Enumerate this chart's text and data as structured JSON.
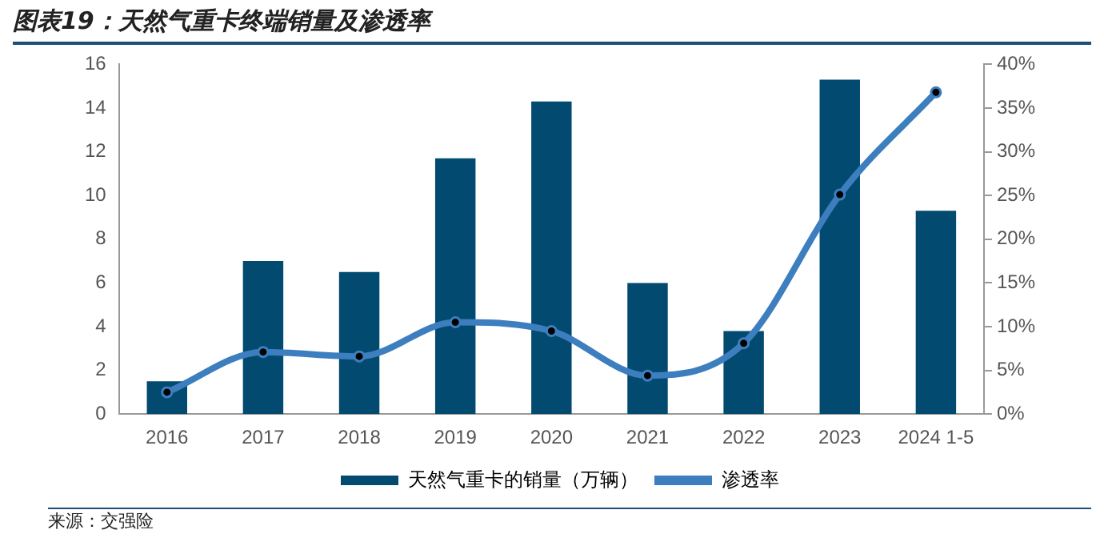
{
  "chart_data": {
    "type": "bar",
    "title": "图表19：天然气重卡终端销量及渗透率",
    "categories": [
      "2016",
      "2017",
      "2018",
      "2019",
      "2020",
      "2021",
      "2022",
      "2023",
      "2024 1-5"
    ],
    "series": [
      {
        "name": "天然气重卡的销量（万辆）",
        "color": "#024a70",
        "values": [
          1.5,
          7.0,
          6.5,
          11.7,
          14.3,
          6.0,
          3.8,
          15.3,
          9.3
        ]
      },
      {
        "name": "渗透率",
        "type": "line",
        "axis": "y2",
        "color": "#3d7ebf",
        "values": [
          2.5,
          7.1,
          6.6,
          10.5,
          9.5,
          4.4,
          8.1,
          25.1,
          36.8
        ]
      }
    ],
    "ylim": [
      0,
      16
    ],
    "yticks": [
      0,
      2,
      4,
      6,
      8,
      10,
      12,
      14,
      16
    ],
    "y2lim": [
      0,
      40
    ],
    "y2ticks": [
      {
        "value": 0,
        "label": "0%"
      },
      {
        "value": 5,
        "label": "5%"
      },
      {
        "value": 10,
        "label": "10%"
      },
      {
        "value": 15,
        "label": "15%"
      },
      {
        "value": 20,
        "label": "20%"
      },
      {
        "value": 25,
        "label": "25%"
      },
      {
        "value": 30,
        "label": "30%"
      },
      {
        "value": 35,
        "label": "35%"
      },
      {
        "value": 40,
        "label": "40%"
      }
    ],
    "grid": false,
    "legend": "bottom",
    "marker": "circle",
    "annotations": [
      "来源：交强险"
    ]
  }
}
